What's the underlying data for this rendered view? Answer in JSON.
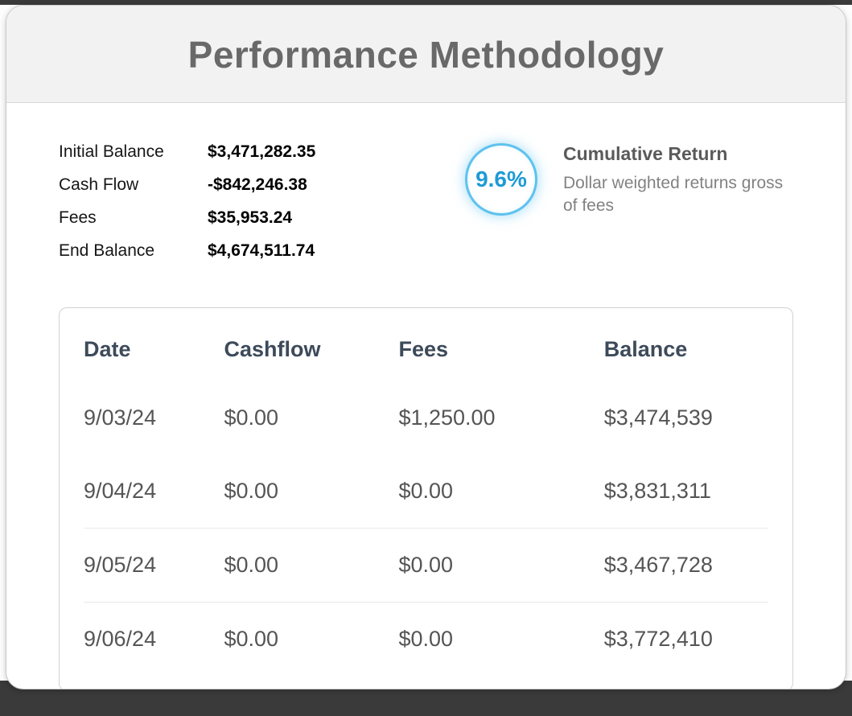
{
  "header": {
    "title": "Performance Methodology"
  },
  "summary": {
    "items": [
      {
        "label": "Initial Balance",
        "value": "$3,471,282.35"
      },
      {
        "label": "Cash Flow",
        "value": "-$842,246.38"
      },
      {
        "label": "Fees",
        "value": "$35,953.24"
      },
      {
        "label": "End Balance",
        "value": "$4,674,511.74"
      }
    ]
  },
  "cumulative_return": {
    "percent": "9.6%",
    "title": "Cumulative Return",
    "description": "Dollar weighted returns gross of fees",
    "accent_color": "#5EC2EE",
    "percent_color": "#1D9BD6"
  },
  "table": {
    "columns": [
      "Date",
      "Cashflow",
      "Fees",
      "Balance"
    ],
    "rows": [
      [
        "9/03/24",
        "$0.00",
        "$1,250.00",
        "$3,474,539"
      ],
      [
        "9/04/24",
        "$0.00",
        "$0.00",
        "$3,831,311"
      ],
      [
        "9/05/24",
        "$0.00",
        "$0.00",
        "$3,467,728"
      ],
      [
        "9/06/24",
        "$0.00",
        "$0.00",
        "$3,772,410"
      ]
    ]
  }
}
